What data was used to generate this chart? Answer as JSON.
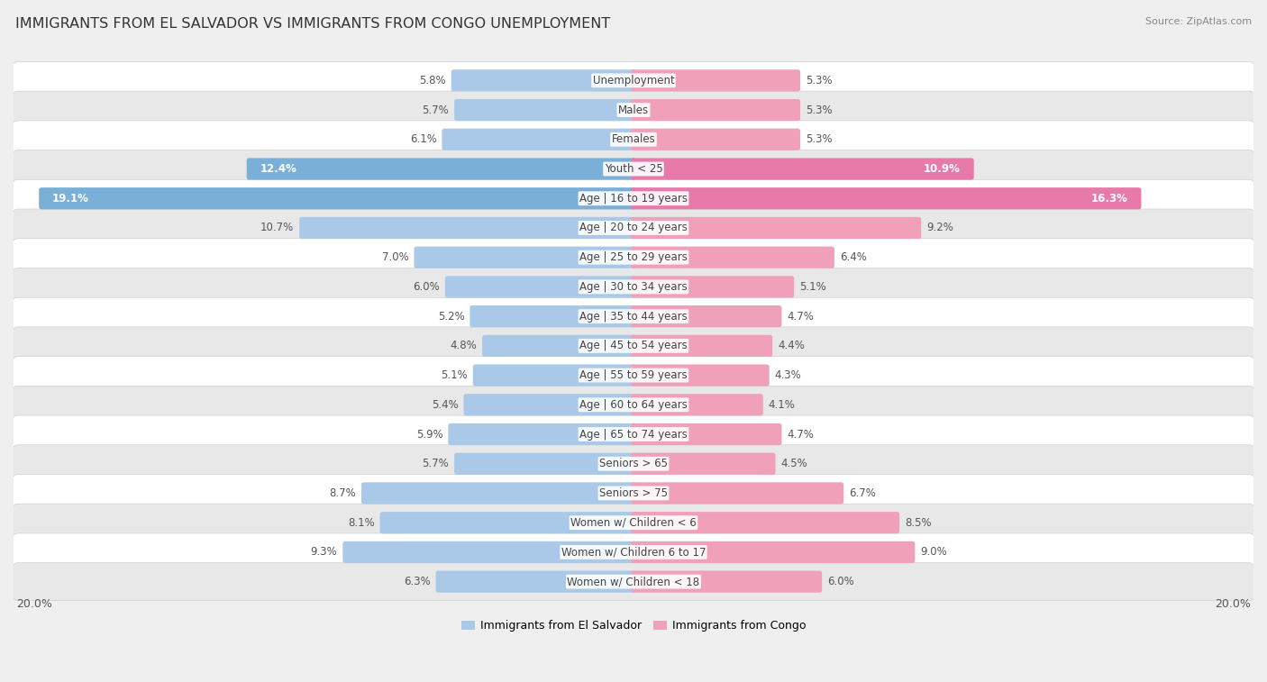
{
  "title": "IMMIGRANTS FROM EL SALVADOR VS IMMIGRANTS FROM CONGO UNEMPLOYMENT",
  "source": "Source: ZipAtlas.com",
  "categories": [
    "Unemployment",
    "Males",
    "Females",
    "Youth < 25",
    "Age | 16 to 19 years",
    "Age | 20 to 24 years",
    "Age | 25 to 29 years",
    "Age | 30 to 34 years",
    "Age | 35 to 44 years",
    "Age | 45 to 54 years",
    "Age | 55 to 59 years",
    "Age | 60 to 64 years",
    "Age | 65 to 74 years",
    "Seniors > 65",
    "Seniors > 75",
    "Women w/ Children < 6",
    "Women w/ Children 6 to 17",
    "Women w/ Children < 18"
  ],
  "el_salvador": [
    5.8,
    5.7,
    6.1,
    12.4,
    19.1,
    10.7,
    7.0,
    6.0,
    5.2,
    4.8,
    5.1,
    5.4,
    5.9,
    5.7,
    8.7,
    8.1,
    9.3,
    6.3
  ],
  "congo": [
    5.3,
    5.3,
    5.3,
    10.9,
    16.3,
    9.2,
    6.4,
    5.1,
    4.7,
    4.4,
    4.3,
    4.1,
    4.7,
    4.5,
    6.7,
    8.5,
    9.0,
    6.0
  ],
  "color_el_salvador": "#aac9e8",
  "color_congo": "#f0a0b8",
  "color_el_salvador_large": "#7ab0d8",
  "color_congo_large": "#e87aaa",
  "background_color": "#efefef",
  "row_bg_color": "#ffffff",
  "row_alt_color": "#e8e8e8",
  "max_val": 20.0,
  "title_fontsize": 11.5,
  "cat_fontsize": 8.5,
  "val_fontsize": 8.5,
  "legend_fontsize": 9,
  "legend_label_el_salvador": "Immigrants from El Salvador",
  "legend_label_congo": "Immigrants from Congo"
}
